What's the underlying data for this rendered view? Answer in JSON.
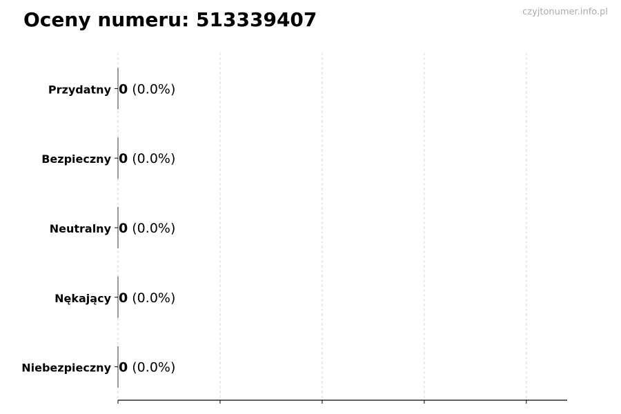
{
  "title": "Oceny numeru: 513339407",
  "watermark": "czyjtonumer.info.pl",
  "chart_data": {
    "type": "bar",
    "orientation": "horizontal",
    "title": "Oceny numeru: 513339407",
    "categories": [
      "Przydatny",
      "Bezpieczny",
      "Neutralny",
      "Nękający",
      "Niebezpieczny"
    ],
    "values": [
      0,
      0,
      0,
      0,
      0
    ],
    "data_labels": [
      {
        "count": "0",
        "pct": "(0.0%)"
      },
      {
        "count": "0",
        "pct": "(0.0%)"
      },
      {
        "count": "0",
        "pct": "(0.0%)"
      },
      {
        "count": "0",
        "pct": "(0.0%)"
      },
      {
        "count": "0",
        "pct": "(0.0%)"
      }
    ],
    "xlim": [
      0,
      4.4
    ],
    "xticks": [
      0,
      1,
      2,
      3,
      4
    ],
    "grid": "vertical dashed",
    "xlabel": "",
    "ylabel": ""
  }
}
